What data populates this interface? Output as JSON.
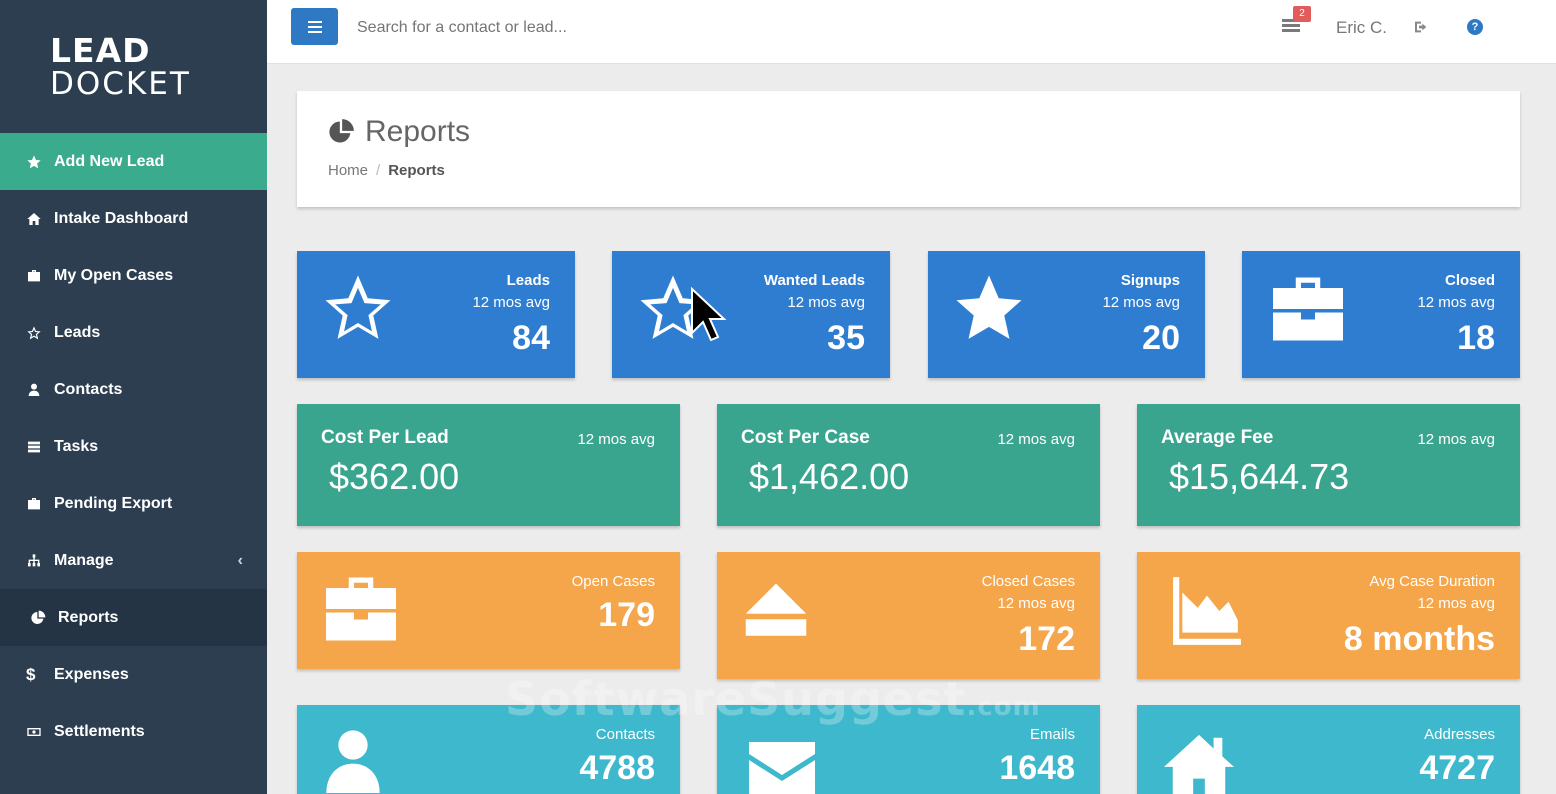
{
  "logo": {
    "line1": "LEAD",
    "line2": "DOCKET"
  },
  "sidebar": {
    "items": [
      {
        "label": "Add New Lead",
        "icon": "star-icon"
      },
      {
        "label": "Intake Dashboard",
        "icon": "home-icon"
      },
      {
        "label": "My Open Cases",
        "icon": "briefcase-icon"
      },
      {
        "label": "Leads",
        "icon": "star-outline-icon"
      },
      {
        "label": "Contacts",
        "icon": "user-icon"
      },
      {
        "label": "Tasks",
        "icon": "tasks-icon"
      },
      {
        "label": "Pending Export",
        "icon": "briefcase-icon"
      },
      {
        "label": "Manage",
        "icon": "sitemap-icon",
        "chevron": "‹"
      },
      {
        "label": "Reports",
        "icon": "pie-chart-icon"
      },
      {
        "label": "Expenses",
        "icon": "dollar-icon"
      },
      {
        "label": "Settlements",
        "icon": "money-icon"
      }
    ]
  },
  "topbar": {
    "search_placeholder": "Search for a contact or lead...",
    "notification_count": "2",
    "user_name": "Eric C.",
    "help": "?"
  },
  "header": {
    "title": "Reports",
    "breadcrumb": {
      "home": "Home",
      "separator": "/",
      "current": "Reports"
    }
  },
  "blue_tiles": [
    {
      "title": "Leads",
      "sub": "12 mos avg",
      "value": "84",
      "icon": "star-outline-icon"
    },
    {
      "title": "Wanted Leads",
      "sub": "12 mos avg",
      "value": "35",
      "icon": "star-outline-icon"
    },
    {
      "title": "Signups",
      "sub": "12 mos avg",
      "value": "20",
      "icon": "star-icon"
    },
    {
      "title": "Closed",
      "sub": "12 mos avg",
      "value": "18",
      "icon": "briefcase-icon"
    }
  ],
  "green_tiles": [
    {
      "title": "Cost Per Lead",
      "sub": "12 mos avg",
      "value": "$362.00"
    },
    {
      "title": "Cost Per Case",
      "sub": "12 mos avg",
      "value": "$1,462.00"
    },
    {
      "title": "Average Fee",
      "sub": "12 mos avg",
      "value": "$15,644.73"
    }
  ],
  "orange_tiles": [
    {
      "title": "Open Cases",
      "sub": "",
      "value": "179",
      "icon": "briefcase-icon"
    },
    {
      "title": "Closed Cases",
      "sub": "12 mos avg",
      "value": "172",
      "icon": "eject-icon"
    },
    {
      "title": "Avg Case Duration",
      "sub": "12 mos avg",
      "value": "8 months",
      "icon": "area-chart-icon"
    }
  ],
  "cyan_tiles": [
    {
      "title": "Contacts",
      "value": "4788",
      "icon": "user-icon"
    },
    {
      "title": "Emails",
      "value": "1648",
      "icon": "envelope-icon"
    },
    {
      "title": "Addresses",
      "value": "4727",
      "icon": "home-icon"
    }
  ],
  "watermark": {
    "main": "SoftwareSuggest",
    "suffix": ".com"
  },
  "colors": {
    "sidebar": "#2c3e50",
    "sidebar_active": "#3bab8d",
    "blue": "#2e7dd1",
    "green": "#3aa58f",
    "orange": "#f5a54a",
    "cyan": "#3db8cc"
  }
}
